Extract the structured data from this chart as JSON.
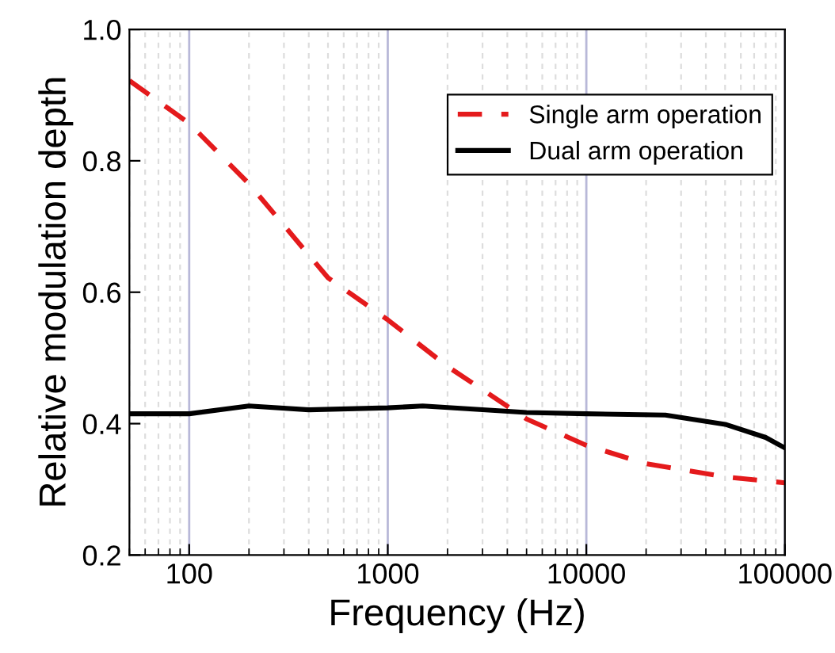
{
  "chart_data": {
    "type": "line",
    "xlabel": "Frequency (Hz)",
    "ylabel": "Relative modulation depth",
    "log": "x",
    "xlim": [
      50,
      100000
    ],
    "xticks": [
      100,
      1000,
      10000,
      100000
    ],
    "ylim": [
      0.2,
      1.0
    ],
    "yticks": [
      0.2,
      0.4,
      0.6,
      0.8,
      {
        "value": 1.0,
        "label": "1.0"
      }
    ],
    "grid": "x",
    "legend": "top right",
    "series": [
      {
        "name": "Single arm operation",
        "color": "#e41a1c",
        "line_style": "dashed",
        "x": [
          50,
          100,
          200,
          500,
          1000,
          2000,
          5000,
          10000,
          20000,
          50000,
          100000
        ],
        "values": [
          0.922,
          0.857,
          0.765,
          0.622,
          0.558,
          0.487,
          0.407,
          0.367,
          0.339,
          0.319,
          0.31
        ]
      },
      {
        "name": "Dual arm operation",
        "color": "#000000",
        "line_style": "solid",
        "x": [
          50,
          100,
          200,
          400,
          1000,
          1500,
          5000,
          10000,
          25000,
          50000,
          80000,
          100000
        ],
        "values": [
          0.415,
          0.415,
          0.427,
          0.421,
          0.424,
          0.427,
          0.417,
          0.415,
          0.413,
          0.399,
          0.379,
          0.363
        ]
      }
    ]
  }
}
